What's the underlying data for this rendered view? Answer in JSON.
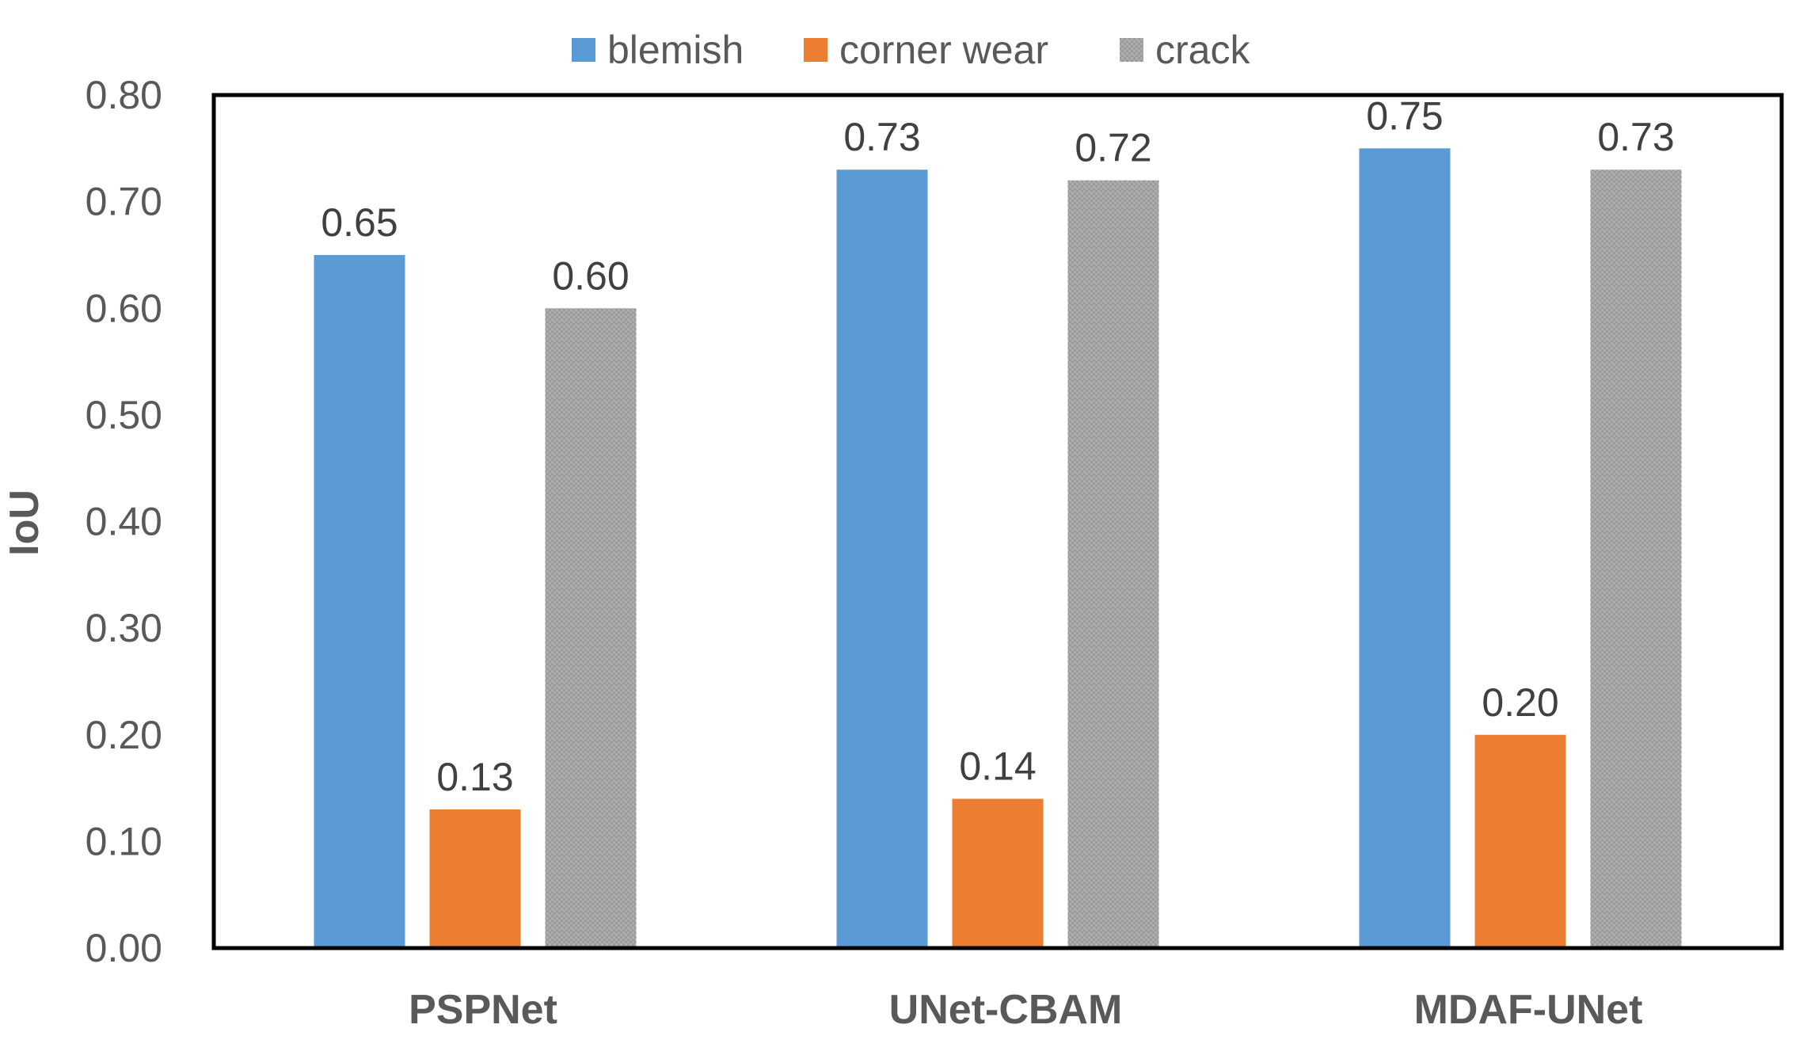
{
  "chart_data": {
    "type": "bar",
    "title": "",
    "xlabel": "",
    "ylabel": "IoU",
    "ylim": [
      0,
      0.8
    ],
    "yticks": [
      "0.00",
      "0.10",
      "0.20",
      "0.30",
      "0.40",
      "0.50",
      "0.60",
      "0.70",
      "0.80"
    ],
    "categories": [
      "PSPNet",
      "UNet-CBAM",
      "MDAF-UNet"
    ],
    "series": [
      {
        "name": "blemish",
        "color": "#5B9BD5",
        "values": [
          0.65,
          0.73,
          0.75
        ],
        "labels": [
          "0.65",
          "0.73",
          "0.75"
        ]
      },
      {
        "name": "corner wear",
        "color": "#ED7D31",
        "values": [
          0.13,
          0.14,
          0.2
        ],
        "labels": [
          "0.13",
          "0.14",
          "0.20"
        ]
      },
      {
        "name": "crack",
        "color": "#A5A5A5",
        "values": [
          0.6,
          0.72,
          0.73
        ],
        "labels": [
          "0.60",
          "0.72",
          "0.73"
        ]
      }
    ],
    "grid": false,
    "legend": "top-center"
  }
}
